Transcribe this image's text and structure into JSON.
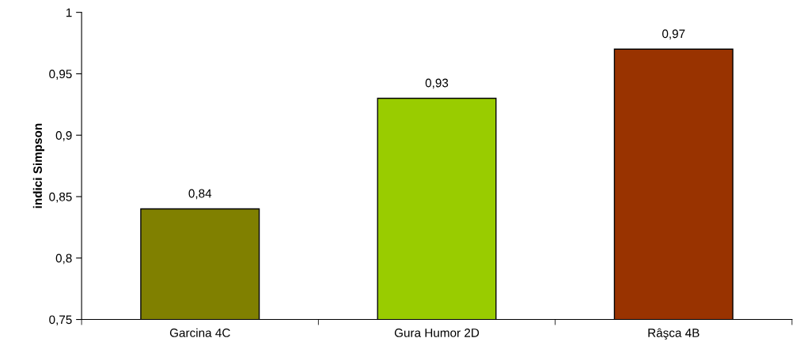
{
  "chart_data": {
    "type": "bar",
    "ylabel": "indici Simpson",
    "categories": [
      "Garcina 4C",
      "Gura Humor 2D",
      "Râşca 4B"
    ],
    "values": [
      0.84,
      0.93,
      0.97
    ],
    "colors": [
      "#808000",
      "#99cc00",
      "#993300"
    ],
    "value_labels": [
      "0,84",
      "0,93",
      "0,97"
    ],
    "ylim": [
      0.75,
      1
    ],
    "yticks": [
      {
        "value": 0.75,
        "label": "0,75"
      },
      {
        "value": 0.8,
        "label": "0,8"
      },
      {
        "value": 0.85,
        "label": "0,85"
      },
      {
        "value": 0.9,
        "label": "0,9"
      },
      {
        "value": 0.95,
        "label": "0,95"
      },
      1
    ],
    "grid": false,
    "legend": false
  }
}
